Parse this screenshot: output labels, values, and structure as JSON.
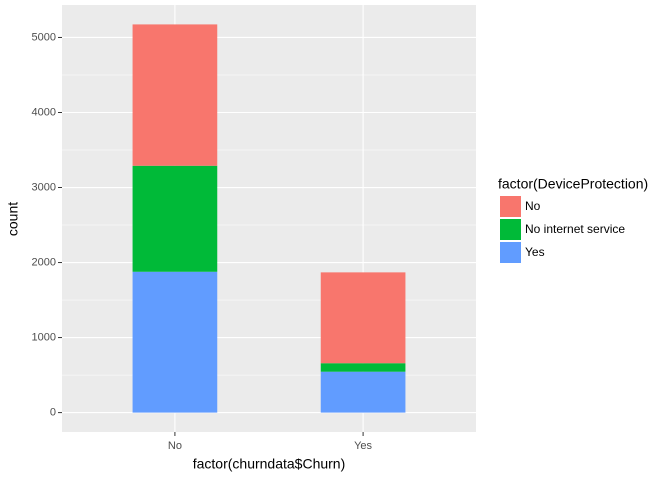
{
  "chart_data": {
    "type": "stacked_bar",
    "x_label": "factor(churndata$Churn)",
    "y_label": "count",
    "legend_title": "factor(DeviceProtection)",
    "legend": "right",
    "categories": [
      "No",
      "Yes"
    ],
    "series": [
      {
        "name": "No",
        "color": "#F8766D",
        "values": [
          1884,
          1211
        ]
      },
      {
        "name": "No internet service",
        "color": "#00BA38",
        "values": [
          1413,
          113
        ]
      },
      {
        "name": "Yes",
        "color": "#619CFF",
        "values": [
          1877,
          545
        ]
      }
    ],
    "ylim": [
      -258.7,
      5432.7
    ],
    "yticks": [
      0,
      1000,
      2000,
      3000,
      4000,
      5000
    ],
    "grid": true
  }
}
